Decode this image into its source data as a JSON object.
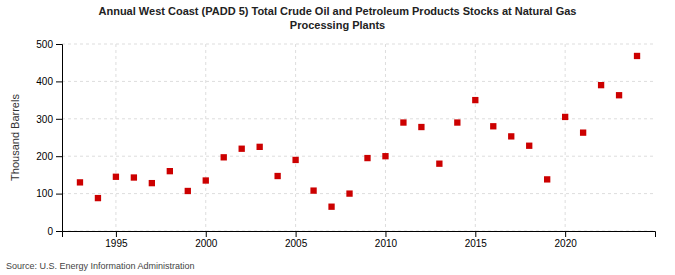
{
  "chart_data": {
    "type": "scatter",
    "title": "Annual West Coast (PADD 5) Total Crude Oil and Petroleum Products Stocks at Natural Gas\nProcessing Plants",
    "ylabel": "Thousand Barrels",
    "source": "Source: U.S. Energy Information Administration",
    "color": "#cc0000",
    "marker": "square",
    "grid": true,
    "xlim": [
      1992,
      2025
    ],
    "ylim": [
      0,
      500
    ],
    "xticks": [
      1995,
      2000,
      2005,
      2010,
      2015,
      2020
    ],
    "yticks": [
      0,
      100,
      200,
      300,
      400,
      500
    ],
    "x": [
      1993,
      1994,
      1995,
      1996,
      1997,
      1998,
      1999,
      2000,
      2001,
      2002,
      2003,
      2004,
      2005,
      2006,
      2007,
      2008,
      2009,
      2010,
      2011,
      2012,
      2013,
      2014,
      2015,
      2016,
      2017,
      2018,
      2019,
      2020,
      2021,
      2022,
      2023,
      2024
    ],
    "values": [
      130,
      88,
      145,
      143,
      128,
      160,
      107,
      135,
      197,
      220,
      225,
      147,
      190,
      108,
      65,
      100,
      195,
      200,
      290,
      278,
      180,
      290,
      350,
      280,
      253,
      228,
      138,
      305,
      263,
      390,
      363,
      468
    ]
  }
}
